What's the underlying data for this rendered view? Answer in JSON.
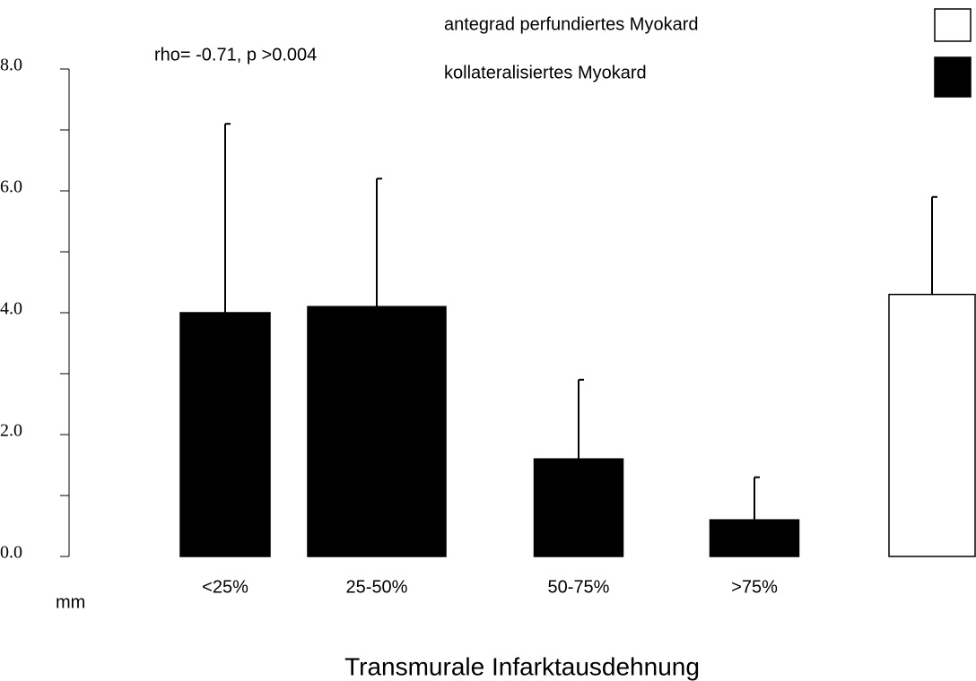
{
  "chart_data": {
    "type": "bar",
    "annotation": "rho= -0.71, p >0.004",
    "y_unit": "mm",
    "x_label": "Transmurale Infarktausdehnung",
    "categories": [
      "<25%",
      "25-50%",
      "50-75%",
      ">75%",
      null
    ],
    "series": [
      {
        "name": "antegrad perfundiertes Myokard",
        "color": "#ffffff",
        "values": [
          null,
          null,
          null,
          null,
          4.3
        ],
        "errors": [
          null,
          null,
          null,
          null,
          1.6
        ]
      },
      {
        "name": "kollateralisiertes Myokard",
        "color": "#000000",
        "values": [
          4.0,
          4.1,
          1.6,
          0.6,
          null
        ],
        "errors": [
          3.1,
          2.1,
          1.3,
          0.7,
          null
        ]
      }
    ],
    "ylim": [
      0,
      8
    ],
    "yticks": [
      {
        "value": 0,
        "label": "0.0"
      },
      {
        "value": 2,
        "label": "2.0"
      },
      {
        "value": 4,
        "label": "4.0"
      },
      {
        "value": 6,
        "label": "6.0"
      },
      {
        "value": 8,
        "label": "8.0"
      }
    ],
    "yminor_ticks": [
      1,
      3,
      5,
      7
    ],
    "legend": "top-right"
  }
}
